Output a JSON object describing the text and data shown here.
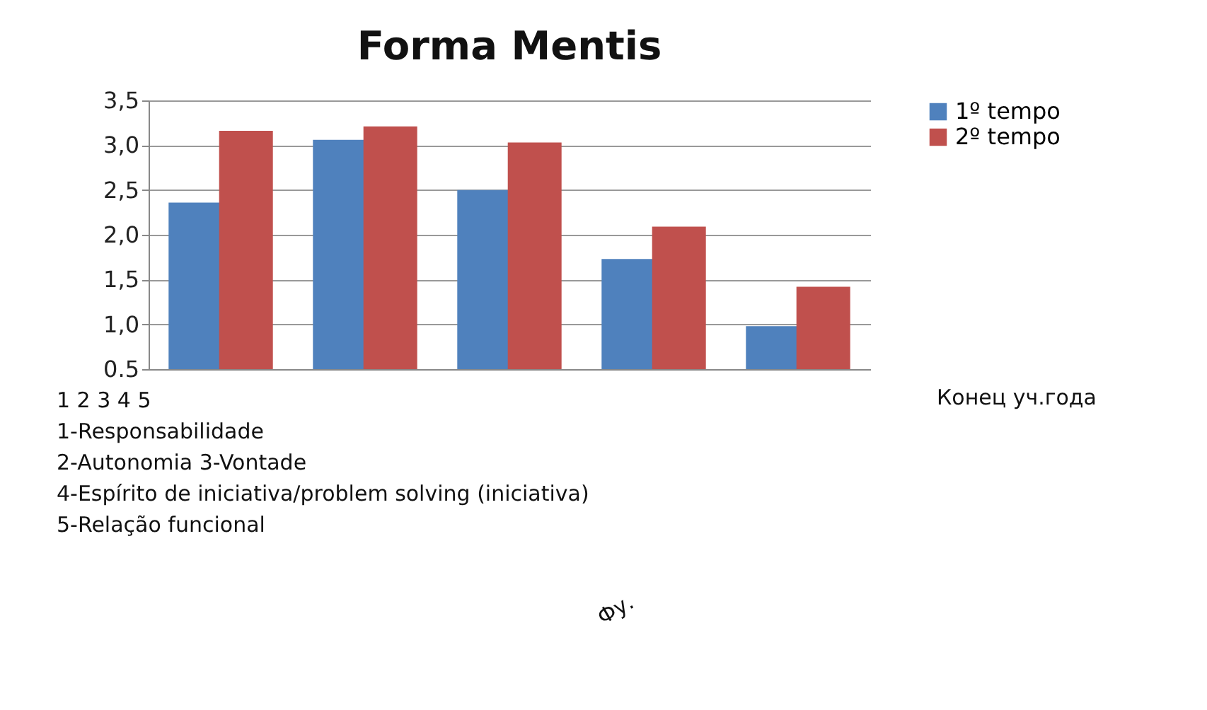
{
  "chart_data": {
    "type": "bar",
    "title": "Forma Mentis",
    "categories": [
      null,
      null,
      null,
      null,
      null
    ],
    "series": [
      {
        "name": "1º tempo",
        "color": "#4f81bd",
        "values": [
          2.36,
          3.06,
          2.5,
          1.73,
          0.98
        ]
      },
      {
        "name": "2º tempo",
        "color": "#c0504d",
        "values": [
          3.16,
          3.21,
          3.03,
          2.09,
          1.42
        ]
      }
    ],
    "ylim": [
      0.5,
      3.5
    ],
    "yticks": [
      {
        "value": 0.5,
        "label": "0.5"
      },
      {
        "value": 1.0,
        "label": "1,0"
      },
      {
        "value": 1.5,
        "label": "1,5"
      },
      {
        "value": 2.0,
        "label": "2,0"
      },
      {
        "value": 2.5,
        "label": "2,5"
      },
      {
        "value": 3.0,
        "label": "3,0"
      },
      {
        "value": 3.5,
        "label": "3,5"
      }
    ],
    "grid": "y",
    "legend": "right",
    "annotations": [
      "1 2 3 4 5",
      "1-Responsabilidade",
      "2-Autonomia  3-Vontade",
      "4-Espírito de iniciativa/problem solving (iniciativa)",
      "5-Relação funcional",
      "Конец уч.года",
      "Фу."
    ]
  }
}
